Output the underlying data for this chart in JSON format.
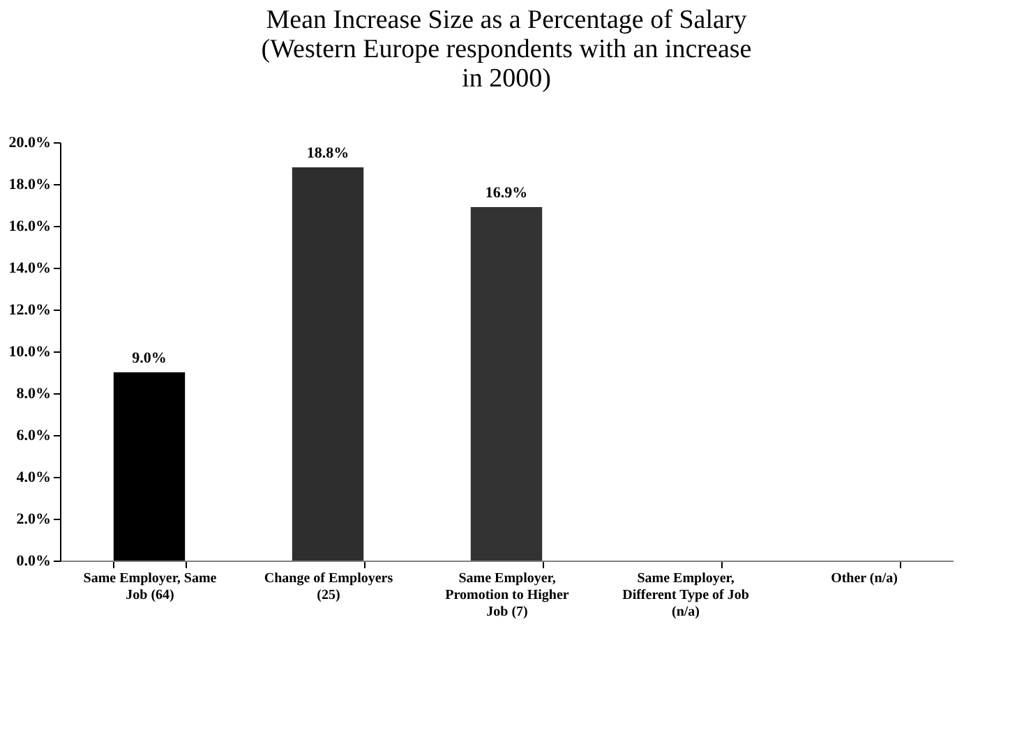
{
  "chart_data": {
    "type": "bar",
    "title": "Mean Increase Size as a Percentage of Salary (Western Europe respondents with an increase in 2000)",
    "categories": [
      "Same Employer, Same Job (64)",
      "Change of Employers (25)",
      "Same Employer, Promotion to Higher Job (7)",
      "Same Employer, Different Type of Job (n/a)",
      "Other (n/a)"
    ],
    "values": [
      9.0,
      18.8,
      16.9,
      null,
      null
    ],
    "colors": [
      "#000000",
      "#2e2e2e",
      "#333333",
      null,
      null
    ],
    "value_labels": [
      "9.0%",
      "18.8%",
      "16.9%",
      null,
      null
    ],
    "ylim": [
      0,
      20
    ],
    "yticks": [
      {
        "value": 0,
        "label": "0.0%"
      },
      {
        "value": 2,
        "label": "2.0%"
      },
      {
        "value": 4,
        "label": "4.0%"
      },
      {
        "value": 6,
        "label": "6.0%"
      },
      {
        "value": 8,
        "label": "8.0%"
      },
      {
        "value": 10,
        "label": "10.0%"
      },
      {
        "value": 12,
        "label": "12.0%"
      },
      {
        "value": 14,
        "label": "14.0%"
      },
      {
        "value": 16,
        "label": "16.0%"
      },
      {
        "value": 18,
        "label": "18.0%"
      },
      {
        "value": 20,
        "label": "20.0%"
      }
    ],
    "grid": false
  }
}
